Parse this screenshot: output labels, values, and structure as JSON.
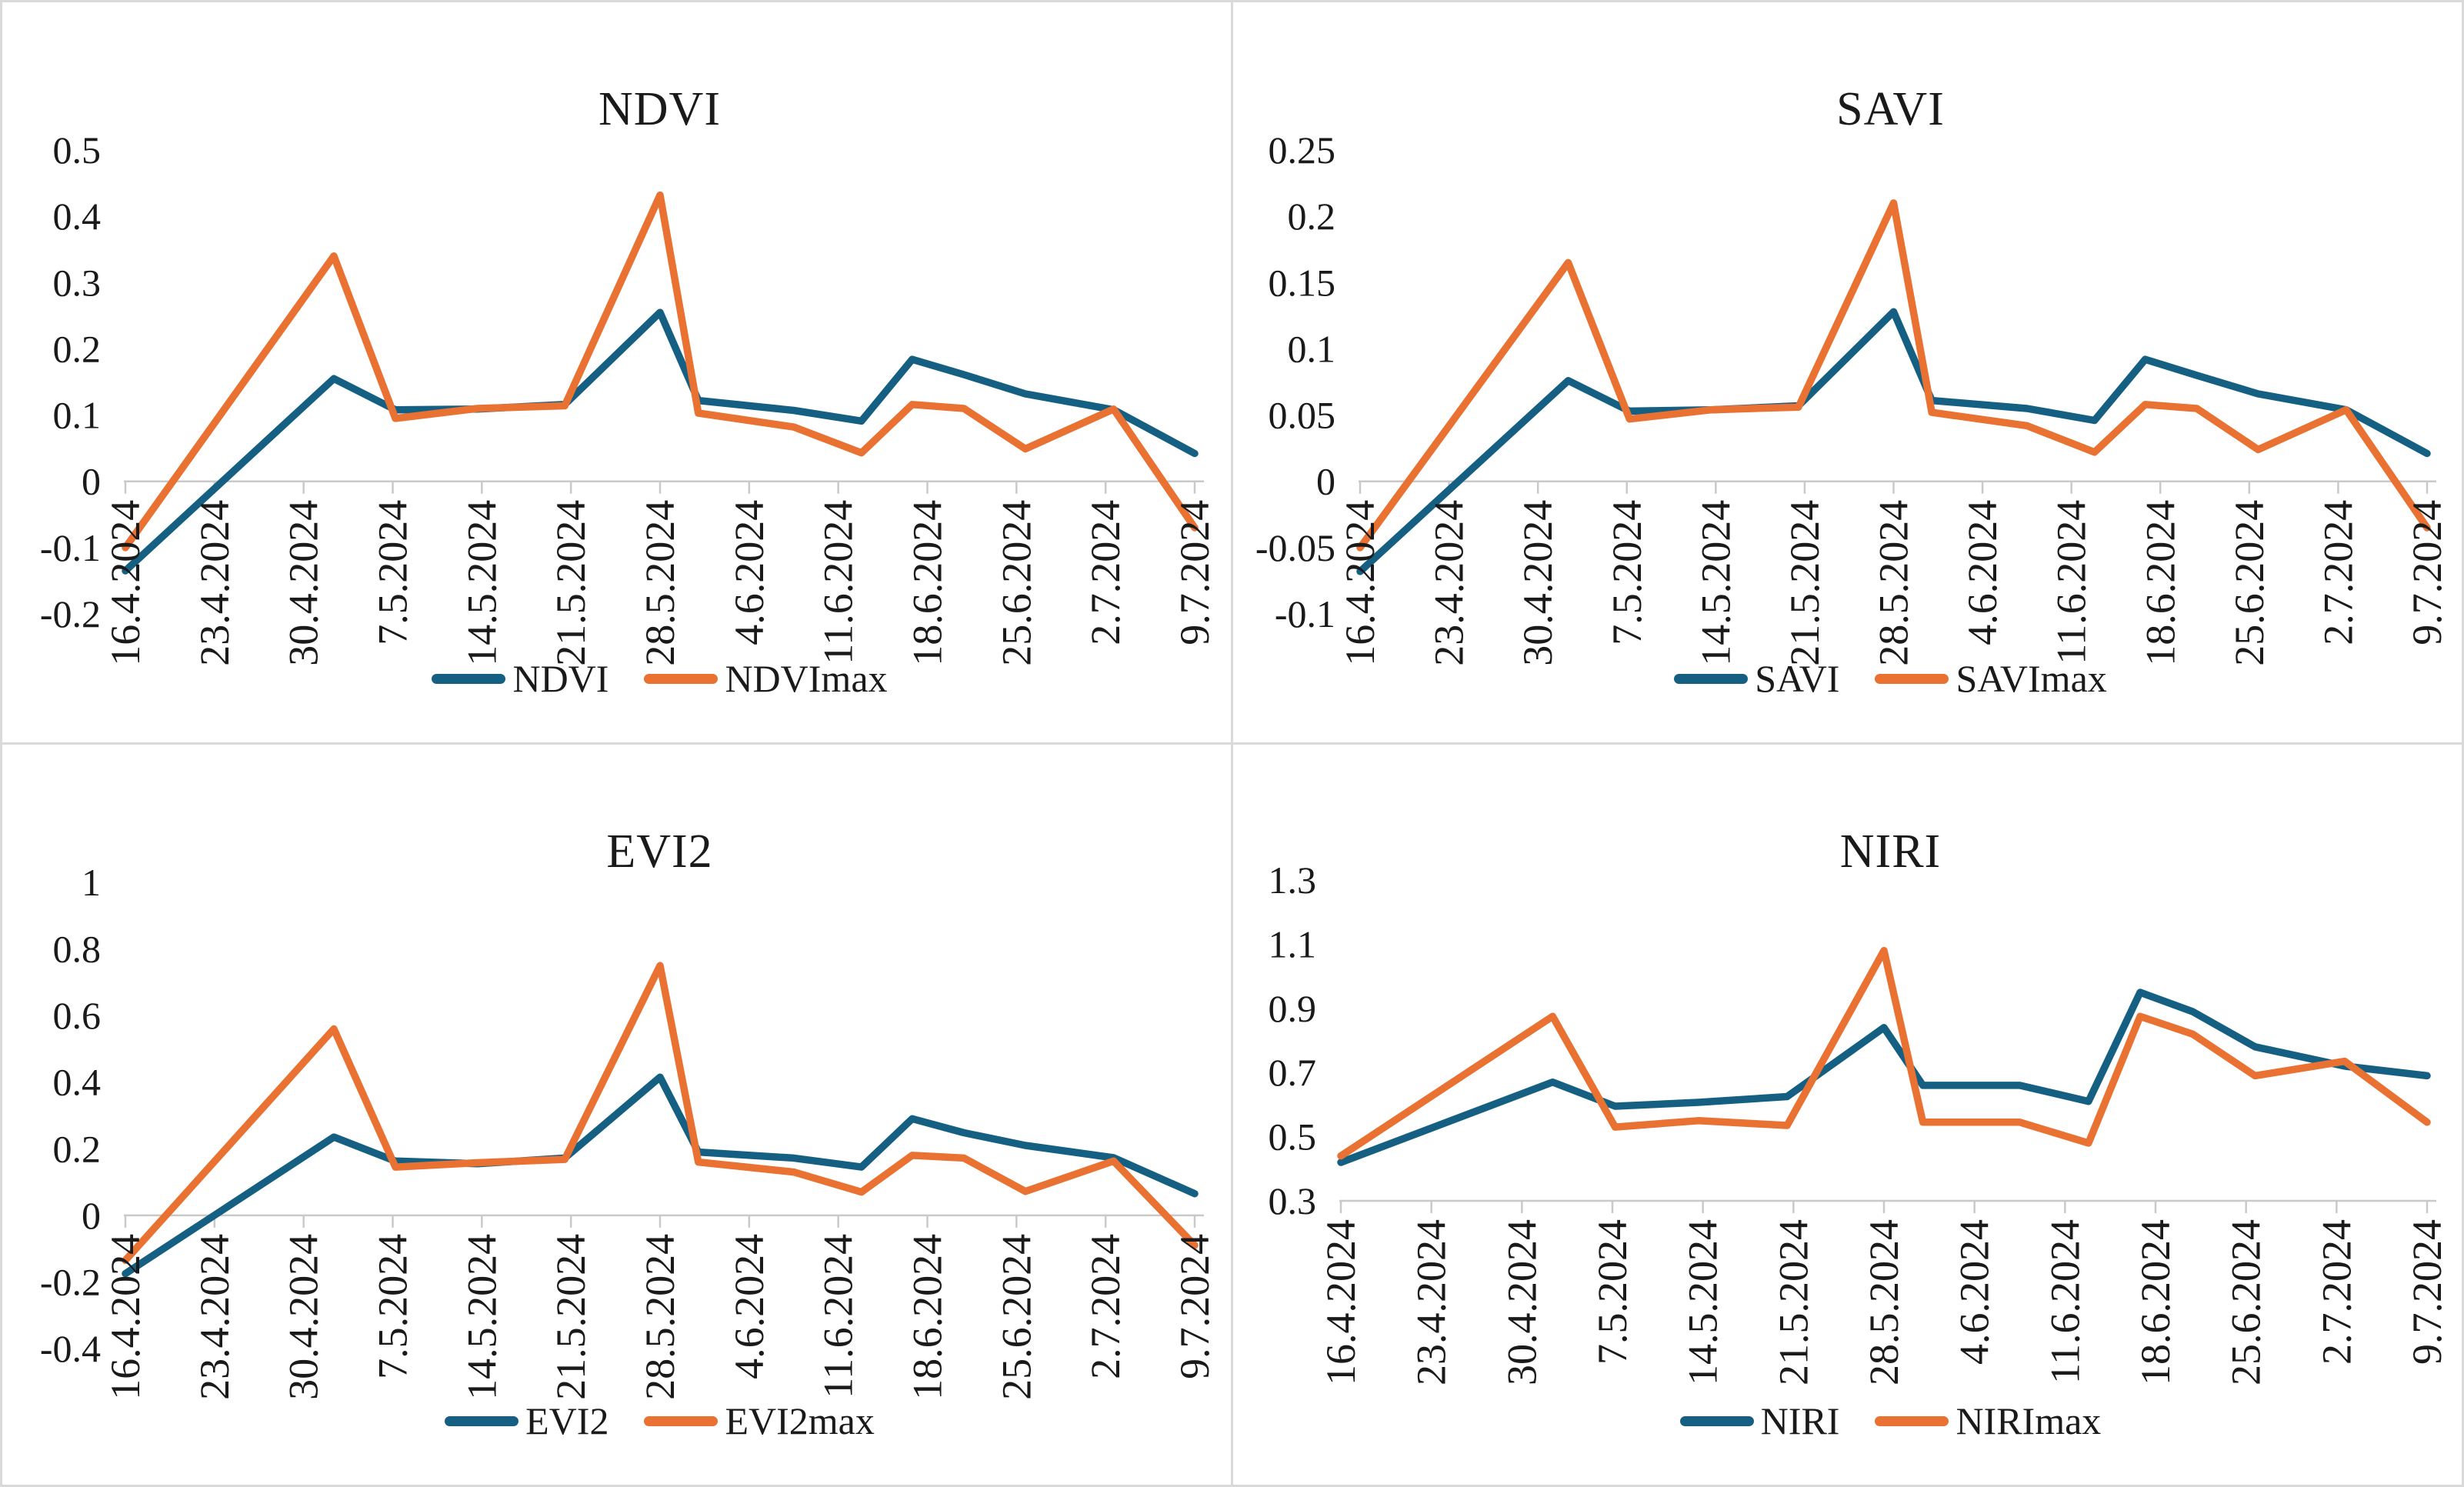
{
  "figure": {
    "background": "#FFFFFF",
    "panel_border_color": "#D9D9D9",
    "axis_line_color": "#C9C9C9",
    "text_color": "#1a1a1a"
  },
  "chart_data": [
    {
      "type": "line",
      "title": "NDVI",
      "xlabel": "",
      "ylabel": "",
      "grid": false,
      "legend_position": "bottom",
      "ylim": [
        -0.2,
        0.5
      ],
      "y_tick_labels": [
        "0.5",
        "0.4",
        "0.3",
        "0.2",
        "0.1",
        "0",
        "-0.1",
        "-0.2"
      ],
      "axis_y_at": 0,
      "x_tick_labels": [
        "16.4.2024",
        "23.4.2024",
        "30.4.2024",
        "7.5.2024",
        "14.5.2024",
        "21.5.2024",
        "28.5.2024",
        "4.6.2024",
        "11.6.2024",
        "18.6.2024",
        "25.6.2024",
        "2.7.2024",
        "9.7.2024"
      ],
      "x_positions": [
        0,
        2.34,
        3.03,
        3.95,
        4.93,
        6.0,
        6.43,
        7.5,
        8.26,
        8.83,
        9.41,
        10.1,
        11.09,
        12
      ],
      "series": [
        {
          "name": "NDVI",
          "color": "#156082",
          "values": [
            -0.135,
            0.155,
            0.108,
            0.109,
            0.116,
            0.255,
            0.122,
            0.107,
            0.091,
            0.184,
            0.161,
            0.132,
            0.108,
            0.042
          ]
        },
        {
          "name": "NDVImax",
          "color": "#E97132",
          "values": [
            -0.1,
            0.34,
            0.095,
            0.11,
            0.114,
            0.432,
            0.103,
            0.082,
            0.043,
            0.116,
            0.11,
            0.049,
            0.109,
            -0.07
          ]
        }
      ]
    },
    {
      "type": "line",
      "title": "SAVI",
      "xlabel": "",
      "ylabel": "",
      "grid": false,
      "legend_position": "bottom",
      "ylim": [
        -0.1,
        0.25
      ],
      "y_tick_labels": [
        "0.25",
        "0.2",
        "0.15",
        "0.1",
        "0.05",
        "0",
        "-0.05",
        "-0.1"
      ],
      "axis_y_at": 0,
      "x_tick_labels": [
        "16.4.2024",
        "23.4.2024",
        "30.4.2024",
        "7.5.2024",
        "14.5.2024",
        "21.5.2024",
        "28.5.2024",
        "4.6.2024",
        "11.6.2024",
        "18.6.2024",
        "25.6.2024",
        "2.7.2024",
        "9.7.2024"
      ],
      "x_positions": [
        0,
        2.34,
        3.03,
        3.95,
        4.93,
        6.0,
        6.43,
        7.5,
        8.26,
        8.83,
        9.41,
        10.1,
        11.09,
        12
      ],
      "series": [
        {
          "name": "SAVI",
          "color": "#156082",
          "values": [
            -0.068,
            0.076,
            0.053,
            0.054,
            0.057,
            0.128,
            0.061,
            0.055,
            0.046,
            0.092,
            0.08,
            0.066,
            0.054,
            0.021
          ]
        },
        {
          "name": "SAVImax",
          "color": "#E97132",
          "values": [
            -0.05,
            0.165,
            0.047,
            0.054,
            0.056,
            0.21,
            0.052,
            0.042,
            0.022,
            0.058,
            0.055,
            0.024,
            0.054,
            -0.035
          ]
        }
      ]
    },
    {
      "type": "line",
      "title": "EVI2",
      "xlabel": "",
      "ylabel": "",
      "grid": false,
      "legend_position": "bottom",
      "ylim": [
        -0.4,
        1.0
      ],
      "y_tick_labels": [
        "1",
        "0.8",
        "0.6",
        "0.4",
        "0.2",
        "0",
        "-0.2",
        "-0.4"
      ],
      "axis_y_at": 0,
      "x_tick_labels": [
        "16.4.2024",
        "23.4.2024",
        "30.4.2024",
        "7.5.2024",
        "14.5.2024",
        "21.5.2024",
        "28.5.2024",
        "4.6.2024",
        "11.6.2024",
        "18.6.2024",
        "25.6.2024",
        "2.7.2024",
        "9.7.2024"
      ],
      "x_positions": [
        0,
        2.34,
        3.03,
        3.95,
        4.93,
        6.0,
        6.43,
        7.5,
        8.26,
        8.83,
        9.41,
        10.1,
        11.09,
        12
      ],
      "series": [
        {
          "name": "EVI2",
          "color": "#156082",
          "values": [
            -0.175,
            0.235,
            0.163,
            0.155,
            0.172,
            0.415,
            0.19,
            0.172,
            0.145,
            0.29,
            0.248,
            0.21,
            0.173,
            0.065
          ]
        },
        {
          "name": "EVI2max",
          "color": "#E97132",
          "values": [
            -0.135,
            0.56,
            0.145,
            0.158,
            0.168,
            0.75,
            0.16,
            0.13,
            0.07,
            0.18,
            0.172,
            0.072,
            0.163,
            -0.09
          ]
        }
      ]
    },
    {
      "type": "line",
      "title": "NIRI",
      "xlabel": "",
      "ylabel": "",
      "grid": false,
      "legend_position": "bottom",
      "ylim": [
        0.3,
        1.3
      ],
      "y_tick_labels": [
        "1.3",
        "1.1",
        "0.9",
        "0.7",
        "0.5",
        "0.3"
      ],
      "axis_y_at": 0.3,
      "x_tick_labels": [
        "16.4.2024",
        "23.4.2024",
        "30.4.2024",
        "7.5.2024",
        "14.5.2024",
        "21.5.2024",
        "28.5.2024",
        "4.6.2024",
        "11.6.2024",
        "18.6.2024",
        "25.6.2024",
        "2.7.2024",
        "9.7.2024"
      ],
      "x_positions": [
        0,
        2.34,
        3.03,
        3.95,
        4.93,
        6.0,
        6.43,
        7.5,
        8.26,
        8.83,
        9.41,
        10.1,
        11.09,
        12
      ],
      "series": [
        {
          "name": "NIRI",
          "color": "#156082",
          "values": [
            0.42,
            0.67,
            0.595,
            0.607,
            0.625,
            0.84,
            0.66,
            0.66,
            0.61,
            0.95,
            0.89,
            0.78,
            0.72,
            0.69
          ]
        },
        {
          "name": "NIRImax",
          "color": "#E97132",
          "values": [
            0.44,
            0.875,
            0.53,
            0.55,
            0.535,
            1.08,
            0.545,
            0.545,
            0.48,
            0.875,
            0.82,
            0.69,
            0.735,
            0.545
          ]
        }
      ]
    }
  ]
}
